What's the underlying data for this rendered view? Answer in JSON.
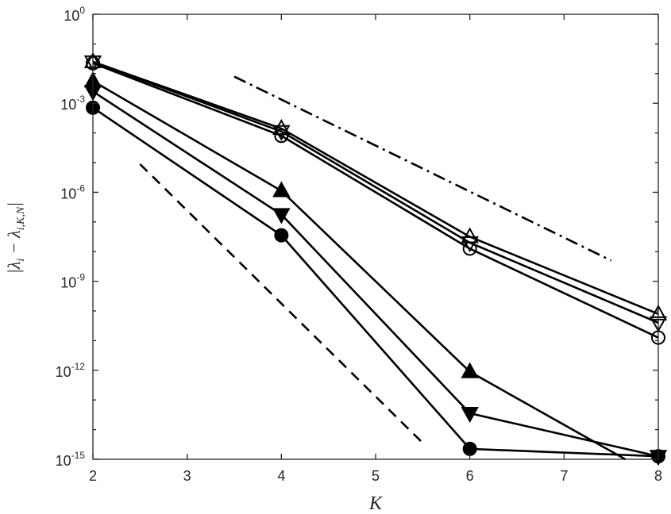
{
  "chart_data": {
    "type": "line",
    "xlabel": "K",
    "ylabel_main": "|λ",
    "ylabel_sub1": "i",
    "ylabel_mid": " − λ",
    "ylabel_sub2": "i,K,N",
    "ylabel_end": "|",
    "xlim": [
      2,
      8
    ],
    "ylim": [
      1e-15,
      1
    ],
    "yscale": "log",
    "grid": false,
    "x_ticks": [
      2,
      3,
      4,
      5,
      6,
      7,
      8
    ],
    "x_tick_labels": [
      "2",
      "3",
      "4",
      "5",
      "6",
      "7",
      "8"
    ],
    "y_ticks": [
      1,
      0.001,
      1e-06,
      1e-09,
      1e-12,
      1e-15
    ],
    "y_tick_labels": [
      {
        "base": "10",
        "exp": "0"
      },
      {
        "base": "10",
        "exp": "-3"
      },
      {
        "base": "10",
        "exp": "-6"
      },
      {
        "base": "10",
        "exp": "-9"
      },
      {
        "base": "10",
        "exp": "-12"
      },
      {
        "base": "10",
        "exp": "-15"
      }
    ],
    "series": [
      {
        "marker": "triangle-up-open",
        "x": [
          2,
          4,
          6,
          8
        ],
        "y": [
          0.0251,
          0.000141,
          3.16e-08,
          7.9e-11
        ]
      },
      {
        "marker": "triangle-down-open",
        "x": [
          2,
          4,
          6,
          8
        ],
        "y": [
          0.0251,
          0.000112,
          2e-08,
          4e-11
        ]
      },
      {
        "marker": "circle-open",
        "x": [
          2,
          4,
          6,
          8
        ],
        "y": [
          0.0224,
          8e-05,
          1.26e-08,
          1.26e-11
        ]
      },
      {
        "marker": "triangle-up-filled",
        "x": [
          2,
          4,
          6,
          7.65
        ],
        "y": [
          0.0056,
          1.12e-06,
          8.9e-13,
          1e-15
        ]
      },
      {
        "marker": "triangle-down-filled",
        "x": [
          2,
          4,
          6,
          8
        ],
        "y": [
          0.0025,
          1.78e-07,
          3.55e-14,
          1.26e-15
        ]
      },
      {
        "marker": "circle-filled",
        "x": [
          2,
          4,
          6,
          8
        ],
        "y": [
          0.00071,
          3.55e-08,
          2.24e-15,
          1.26e-15
        ]
      }
    ],
    "reference_lines": [
      {
        "style": "dash-dot",
        "x": [
          3.5,
          7.5
        ],
        "y": [
          0.00794,
          5e-09
        ]
      },
      {
        "style": "dashed",
        "x": [
          2.5,
          5.5
        ],
        "y": [
          8.9e-06,
          3.55e-15
        ]
      }
    ],
    "colors": {
      "line": "#000000",
      "axis": "#262626",
      "background": "#ffffff"
    }
  }
}
